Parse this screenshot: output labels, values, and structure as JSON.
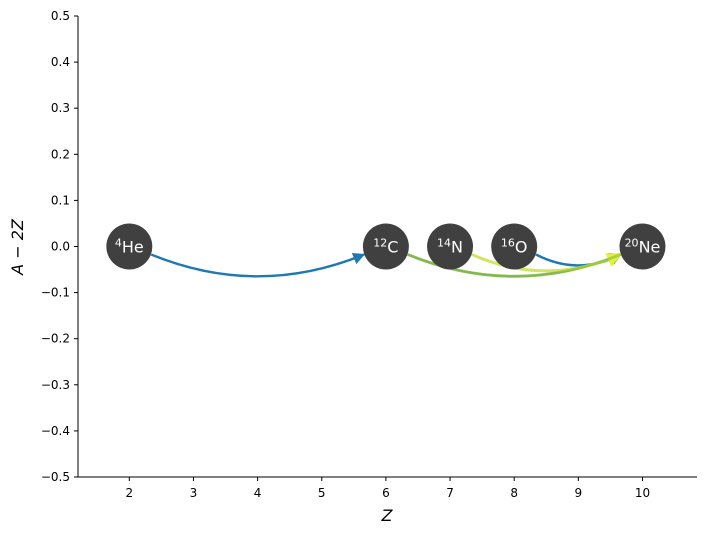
{
  "chart_data": {
    "type": "scatter",
    "title": "",
    "xlabel": "Z",
    "ylabel": "A − 2Z",
    "xlim": [
      1.2,
      10.85
    ],
    "ylim": [
      -0.5,
      0.5
    ],
    "x_ticks": [
      2,
      3,
      4,
      5,
      6,
      7,
      8,
      9,
      10
    ],
    "y_ticks": [
      -0.5,
      -0.4,
      -0.3,
      -0.2,
      -0.1,
      0.0,
      0.1,
      0.2,
      0.3,
      0.4,
      0.5
    ],
    "x_tick_labels": [
      "2",
      "3",
      "4",
      "5",
      "6",
      "7",
      "8",
      "9",
      "10"
    ],
    "y_tick_labels": [
      "−0.5",
      "−0.4",
      "−0.3",
      "−0.2",
      "−0.1",
      "0.0",
      "0.1",
      "0.2",
      "0.3",
      "0.4",
      "0.5"
    ],
    "grid": false,
    "node_color": "#404040",
    "nodes": [
      {
        "mass": "4",
        "symbol": "He",
        "x": 2,
        "y": 0
      },
      {
        "mass": "12",
        "symbol": "C",
        "x": 6,
        "y": 0
      },
      {
        "mass": "14",
        "symbol": "N",
        "x": 7,
        "y": 0
      },
      {
        "mass": "16",
        "symbol": "O",
        "x": 8,
        "y": 0
      },
      {
        "mass": "20",
        "symbol": "Ne",
        "x": 10,
        "y": 0
      }
    ],
    "links": [
      {
        "from": 0,
        "to": 1,
        "color": "#1f77b4",
        "arrow": true
      },
      {
        "from": 1,
        "to": 4,
        "color": "#1f77b4",
        "arrow": true
      },
      {
        "from": 3,
        "to": 4,
        "color": "#1f77b4",
        "arrow": true
      },
      {
        "from": 2,
        "to": 4,
        "color": "#c8dc3c",
        "arrow": true
      },
      {
        "from": 1,
        "to": 4,
        "color": "#9bc83c",
        "arrow": false
      }
    ]
  }
}
